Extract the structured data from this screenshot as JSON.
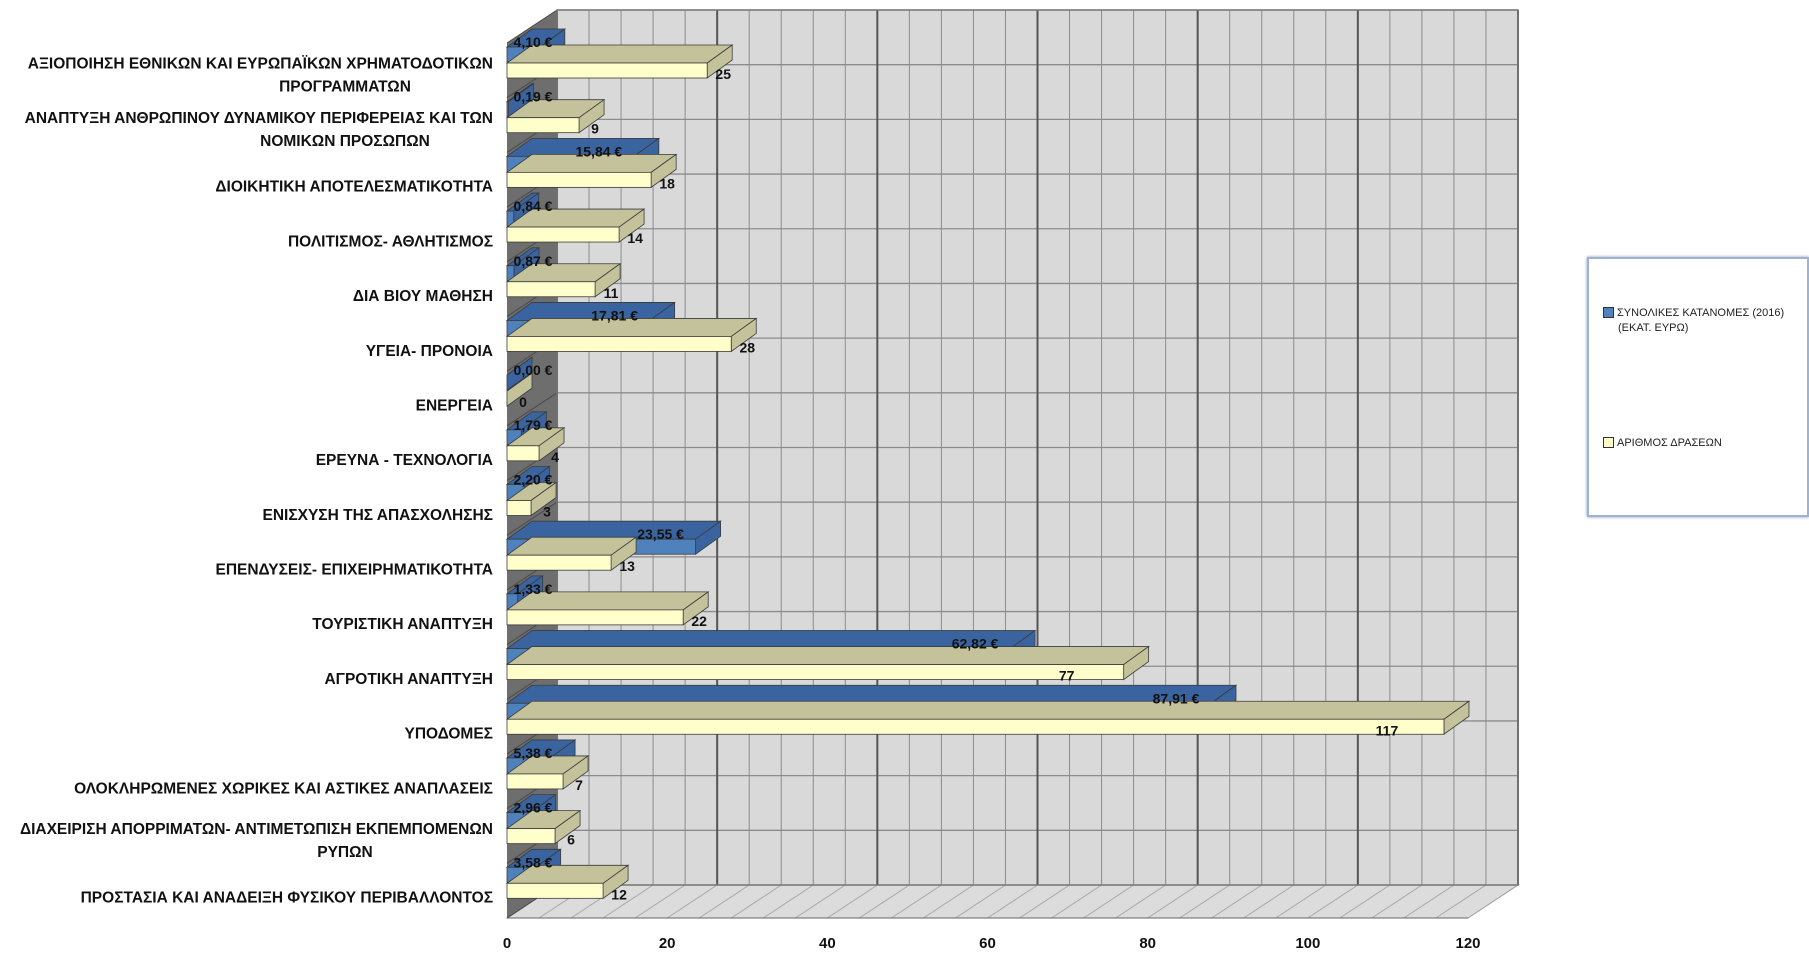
{
  "chart_data": {
    "type": "bar",
    "orientation": "horizontal",
    "style": "3d",
    "categories": [
      [
        "ΑΞΙΟΠΟΙΗΣΗ ΕΘΝΙΚΩΝ ΚΑΙ ΕΥΡΩΠΑΪΚΩΝ ΧΡΗΜΑΤΟΔΟΤΙΚΩΝ",
        "ΠΡΟΓΡΑΜΜΑΤΩΝ"
      ],
      [
        "ΑΝΑΠΤΥΞΗ ΑΝΘΡΩΠΙΝΟΥ ΔΥΝΑΜΙΚΟΥ ΠΕΡΙΦΕΡΕΙΑΣ ΚΑΙ ΤΩΝ",
        "ΝΟΜΙΚΩΝ ΠΡΟΣΩΠΩΝ"
      ],
      [
        "ΔΙΟΙΚΗΤΙΚΗ ΑΠΟΤΕΛΕΣΜΑΤΙΚΟΤΗΤΑ"
      ],
      [
        "ΠΟΛΙΤΙΣΜΟΣ- ΑΘΛΗΤΙΣΜΟΣ"
      ],
      [
        "ΔΙΑ ΒΙΟΥ ΜΑΘΗΣΗ"
      ],
      [
        "ΥΓΕΙΑ- ΠΡΟΝΟΙΑ"
      ],
      [
        "ΕΝΕΡΓΕΙΑ"
      ],
      [
        "ΕΡΕΥΝΑ - ΤΕΧΝΟΛΟΓΙΑ"
      ],
      [
        "ΕΝΙΣΧΥΣΗ ΤΗΣ ΑΠΑΣΧΟΛΗΣΗΣ"
      ],
      [
        "ΕΠΕΝΔΥΣΕΙΣ- ΕΠΙΧΕΙΡΗΜΑΤΙΚΟΤΗΤΑ"
      ],
      [
        "ΤΟΥΡΙΣΤΙΚΗ ΑΝΑΠΤΥΞΗ"
      ],
      [
        "ΑΓΡΟΤΙΚΗ ΑΝΑΠΤΥΞΗ"
      ],
      [
        "ΥΠΟΔΟΜΕΣ"
      ],
      [
        "ΟΛΟΚΛΗΡΩΜΕΝΕΣ ΧΩΡΙΚΕΣ ΚΑΙ ΑΣΤΙΚΕΣ ΑΝΑΠΛΑΣΕΙΣ"
      ],
      [
        "ΔΙΑΧΕΙΡΙΣΗ ΑΠΟΡΡΙΜΑΤΩΝ- ΑΝΤΙΜΕΤΩΠΙΣΗ ΕΚΠΕΜΠΟΜΕΝΩΝ",
        "ΡΥΠΩΝ"
      ],
      [
        "ΠΡΟΣΤΑΣΙΑ ΚΑΙ ΑΝΑΔΕΙΞΗ ΦΥΣΙΚΟΥ ΠΕΡΙΒΑΛΛΟΝΤΟΣ"
      ]
    ],
    "series": [
      {
        "name": "ΣΥΝΟΛΙΚΕΣ ΚΑΤΑΝΟΜΕΣ (2016) (ΕΚΑΤ. ΕΥΡΩ)",
        "legend_lines": [
          "ΣΥΝΟΛΙΚΕΣ ΚΑΤΑΝΟΜΕΣ (2016)",
          "(ΕΚΑΤ. ΕΥΡΩ)"
        ],
        "values": [
          4.1,
          0.19,
          15.84,
          0.84,
          0.87,
          17.81,
          0.0,
          1.79,
          2.2,
          23.55,
          1.33,
          62.82,
          87.91,
          5.38,
          2.96,
          3.58
        ],
        "labels": [
          "4,10 €",
          "0,19 €",
          "15,84 €",
          "0,84 €",
          "0,87 €",
          "17,81 €",
          "0,00 €",
          "1,79 €",
          "2,20 €",
          "23,55 €",
          "1,33 €",
          "62,82 €",
          "87,91 €",
          "5,38 €",
          "2,96 €",
          "3,58 €"
        ],
        "color": "#4f81bd"
      },
      {
        "name": "ΑΡΙΘΜΟΣ ΔΡΑΣΕΩΝ",
        "legend_lines": [
          "ΑΡΙΘΜΟΣ ΔΡΑΣΕΩΝ"
        ],
        "values": [
          25,
          9,
          18,
          14,
          11,
          28,
          0,
          4,
          3,
          13,
          22,
          77,
          117,
          7,
          6,
          12
        ],
        "labels": [
          "25",
          "9",
          "18",
          "14",
          "11",
          "28",
          "0",
          "4",
          "3",
          "13",
          "22",
          "77",
          "117",
          "7",
          "6",
          "12"
        ],
        "color": "#ffffcc"
      }
    ],
    "xlim": [
      0,
      120
    ],
    "xticks": [
      0,
      20,
      40,
      60,
      80,
      100,
      120
    ],
    "tick_labels": [
      "0",
      "20",
      "40",
      "60",
      "80",
      "100",
      "120"
    ],
    "grid": true,
    "legend": "right"
  },
  "colors": {
    "wall": "#d9d9d9",
    "grid": "#8c8c8c",
    "major_grid": "#555555",
    "left_wall": "#6e6e6e",
    "blue_front": "#4f81bd",
    "blue_top": "#3a64a0",
    "yellow_front": "#ffffcc",
    "yellow_top": "#c4c29a"
  }
}
